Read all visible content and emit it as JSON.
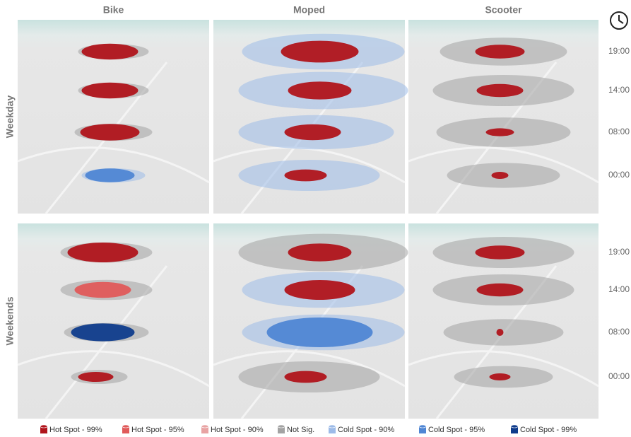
{
  "columns": [
    "Bike",
    "Moped",
    "Scooter"
  ],
  "rows": [
    "Weekday",
    "Weekends"
  ],
  "time_labels": [
    "19:00",
    "14:00",
    "08:00",
    "00:00"
  ],
  "legend": [
    {
      "label": "Hot Spot - 99%",
      "color": "#b0141b"
    },
    {
      "label": "Hot Spot - 95%",
      "color": "#e05a5a"
    },
    {
      "label": "Hot Spot - 90%",
      "color": "#e8a3a3"
    },
    {
      "label": "Not Sig.",
      "color": "#a3a3a3"
    },
    {
      "label": "Cold Spot - 90%",
      "color": "#9dbbe8"
    },
    {
      "label": "Cold Spot - 95%",
      "color": "#4f86d4"
    },
    {
      "label": "Cold Spot - 99%",
      "color": "#0f3c8c"
    }
  ]
}
